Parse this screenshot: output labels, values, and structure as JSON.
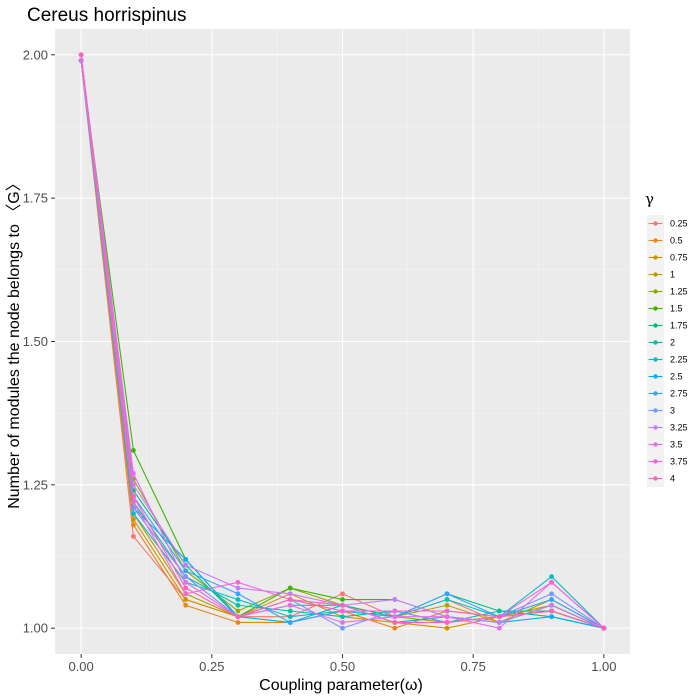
{
  "chart_data": {
    "type": "line",
    "title": "Cereus horrispinus",
    "xlabel": "Coupling parameter(ω)",
    "ylabel": "Number of modules the node belongs to 〈G〉",
    "xlim": [
      -0.05,
      1.05
    ],
    "ylim": [
      0.955,
      2.045
    ],
    "x": [
      0.0,
      0.1,
      0.2,
      0.3,
      0.4,
      0.5,
      0.6,
      0.7,
      0.8,
      0.9,
      1.0
    ],
    "x_ticks": [
      0.0,
      0.25,
      0.5,
      0.75,
      1.0
    ],
    "x_tick_labels": [
      "0.00",
      "0.25",
      "0.50",
      "0.75",
      "1.00"
    ],
    "y_ticks": [
      1.0,
      1.25,
      1.5,
      1.75,
      2.0
    ],
    "y_tick_labels": [
      "1.00",
      "1.25",
      "1.50",
      "1.75",
      "2.00"
    ],
    "grid": true,
    "legend_title": "γ",
    "legend_position": "right",
    "series": [
      {
        "name": "0.25",
        "color": "#F8766D",
        "values": [
          1.99,
          1.16,
          1.05,
          1.02,
          1.02,
          1.06,
          1.02,
          1.05,
          1.01,
          1.04,
          1.0
        ]
      },
      {
        "name": "0.5",
        "color": "#E7861B",
        "values": [
          1.99,
          1.18,
          1.04,
          1.01,
          1.01,
          1.03,
          1.0,
          1.03,
          1.02,
          1.03,
          1.0
        ]
      },
      {
        "name": "0.75",
        "color": "#D19300",
        "values": [
          1.99,
          1.19,
          1.05,
          1.02,
          1.06,
          1.02,
          1.01,
          1.0,
          1.02,
          1.04,
          1.0
        ]
      },
      {
        "name": "1",
        "color": "#B6A000",
        "values": [
          1.99,
          1.2,
          1.06,
          1.02,
          1.05,
          1.03,
          1.02,
          1.04,
          1.01,
          1.05,
          1.0
        ]
      },
      {
        "name": "1.25",
        "color": "#95A900",
        "values": [
          1.99,
          1.26,
          1.1,
          1.03,
          1.07,
          1.04,
          1.02,
          1.01,
          1.02,
          1.03,
          1.0
        ]
      },
      {
        "name": "1.5",
        "color": "#39B600",
        "values": [
          1.99,
          1.31,
          1.12,
          1.02,
          1.07,
          1.05,
          1.05,
          1.02,
          1.01,
          1.04,
          1.0
        ]
      },
      {
        "name": "1.75",
        "color": "#00BF7D",
        "values": [
          1.99,
          1.24,
          1.11,
          1.02,
          1.04,
          1.04,
          1.02,
          1.06,
          1.03,
          1.03,
          1.0
        ]
      },
      {
        "name": "2",
        "color": "#00C1A3",
        "values": [
          1.99,
          1.22,
          1.09,
          1.04,
          1.03,
          1.02,
          1.03,
          1.01,
          1.03,
          1.02,
          1.0
        ]
      },
      {
        "name": "2.25",
        "color": "#00BFC4",
        "values": [
          1.99,
          1.2,
          1.08,
          1.05,
          1.02,
          1.03,
          1.02,
          1.05,
          1.02,
          1.09,
          1.0
        ]
      },
      {
        "name": "2.5",
        "color": "#00B0F6",
        "values": [
          1.99,
          1.21,
          1.12,
          1.02,
          1.01,
          1.04,
          1.01,
          1.02,
          1.01,
          1.02,
          1.0
        ]
      },
      {
        "name": "2.75",
        "color": "#35A2FF",
        "values": [
          1.99,
          1.23,
          1.1,
          1.06,
          1.01,
          1.03,
          1.02,
          1.06,
          1.02,
          1.05,
          1.0
        ]
      },
      {
        "name": "3",
        "color": "#7997FF",
        "values": [
          1.99,
          1.21,
          1.09,
          1.02,
          1.05,
          1.0,
          1.03,
          1.01,
          1.02,
          1.06,
          1.0
        ]
      },
      {
        "name": "3.25",
        "color": "#C77CFF",
        "values": [
          1.99,
          1.25,
          1.11,
          1.07,
          1.06,
          1.04,
          1.05,
          1.02,
          1.01,
          1.04,
          1.0
        ]
      },
      {
        "name": "3.5",
        "color": "#E76BF3",
        "values": [
          2.0,
          1.27,
          1.08,
          1.02,
          1.04,
          1.01,
          1.02,
          1.02,
          1.0,
          1.08,
          1.0
        ]
      },
      {
        "name": "3.75",
        "color": "#FA62DB",
        "values": [
          2.0,
          1.22,
          1.06,
          1.08,
          1.05,
          1.03,
          1.03,
          1.03,
          1.02,
          1.08,
          1.0
        ]
      },
      {
        "name": "4",
        "color": "#FF62BC",
        "values": [
          2.0,
          1.23,
          1.07,
          1.02,
          1.05,
          1.04,
          1.01,
          1.01,
          1.02,
          1.03,
          1.0
        ]
      }
    ]
  }
}
